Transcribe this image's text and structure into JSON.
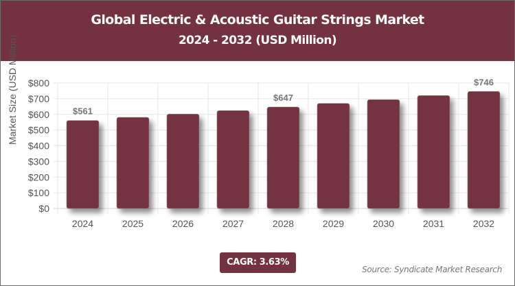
{
  "header": {
    "title_line1": "Global Electric & Acoustic Guitar Strings Market",
    "title_line2": "2024 - 2032 (USD Million)"
  },
  "footer": {
    "cagr_label": "CAGR: 3.63%",
    "source": "Source: Syndicate Market Research"
  },
  "colors": {
    "brand": "#743140",
    "bar": "#743140",
    "grid": "#e6e6e6",
    "tick_text": "#555555"
  },
  "chart_data": {
    "type": "bar",
    "title": "Global Electric & Acoustic Guitar Strings Market 2024 - 2032 (USD Million)",
    "xlabel": "",
    "ylabel": "Market Size (USD Million)",
    "categories": [
      "2024",
      "2025",
      "2026",
      "2027",
      "2028",
      "2029",
      "2030",
      "2031",
      "2032"
    ],
    "values": [
      561,
      581,
      602,
      624,
      647,
      670,
      694,
      720,
      746
    ],
    "data_labels": {
      "2024": "$561",
      "2028": "$647",
      "2032": "$746"
    },
    "ylim": [
      0,
      800
    ],
    "yticks": [
      "$0",
      "$100",
      "$200",
      "$300",
      "$400",
      "$500",
      "$600",
      "$700",
      "$800"
    ],
    "grid": true,
    "legend": "none"
  }
}
